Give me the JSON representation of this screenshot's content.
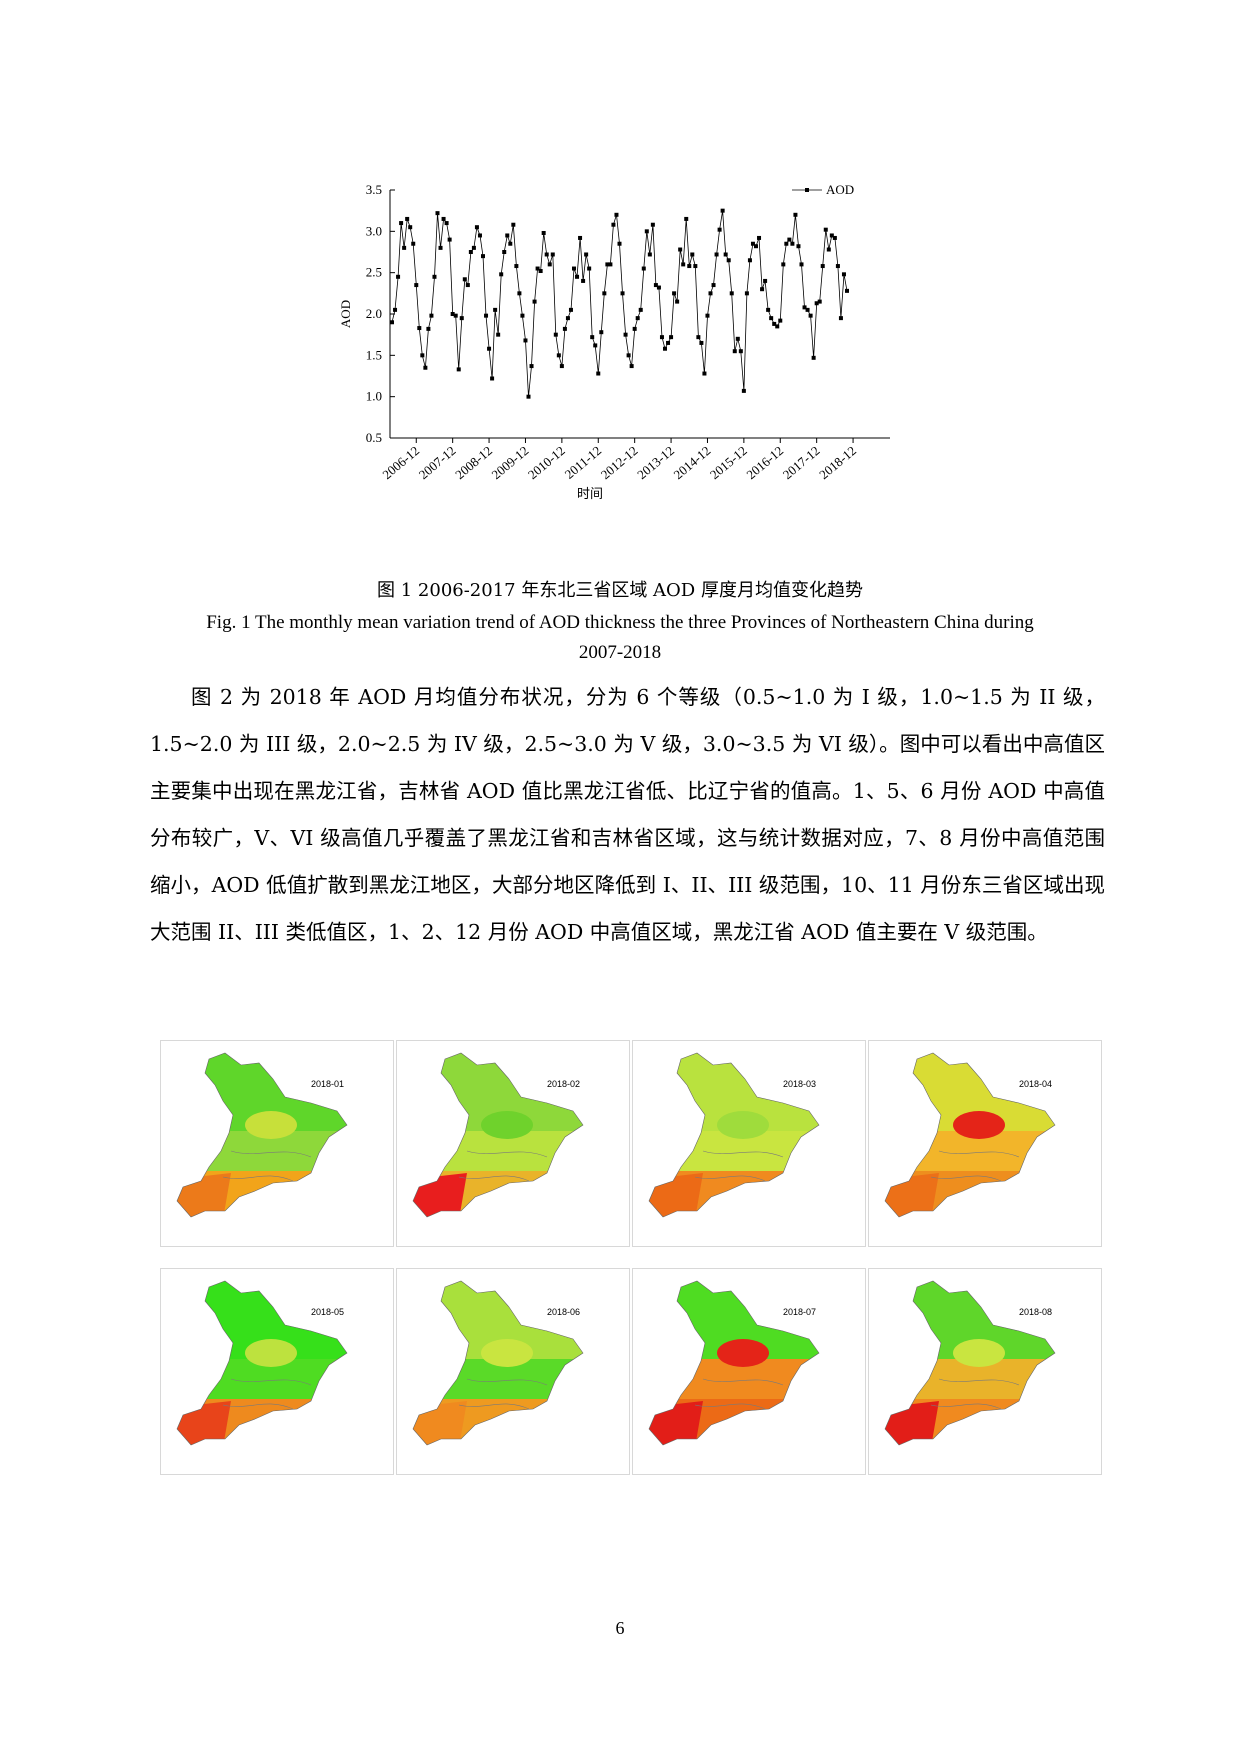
{
  "chart_data": {
    "type": "line",
    "ylabel": "AOD",
    "xlabel": "时间",
    "ylim": [
      0.5,
      3.5
    ],
    "yticks": [
      "0.5",
      "1.0",
      "1.5",
      "2.0",
      "2.5",
      "3.0",
      "3.5"
    ],
    "xticks": [
      "2006-12",
      "2007-12",
      "2008-12",
      "2009-12",
      "2010-12",
      "2011-12",
      "2012-12",
      "2013-12",
      "2014-12",
      "2015-12",
      "2016-12",
      "2017-12",
      "2018-12"
    ],
    "legend": {
      "label": "AOD",
      "position": "top-right"
    },
    "marker": "square",
    "series": [
      {
        "name": "AOD",
        "values": [
          1.9,
          2.05,
          2.45,
          3.1,
          2.8,
          3.15,
          3.05,
          2.85,
          2.35,
          1.83,
          1.5,
          1.35,
          1.82,
          1.98,
          2.45,
          3.22,
          2.8,
          3.15,
          3.1,
          2.9,
          2.0,
          1.98,
          1.33,
          1.95,
          2.42,
          2.35,
          2.75,
          2.8,
          3.05,
          2.95,
          2.7,
          1.98,
          1.58,
          1.22,
          2.05,
          1.75,
          2.48,
          2.75,
          2.95,
          2.85,
          3.08,
          2.58,
          2.25,
          1.98,
          1.68,
          1.0,
          1.37,
          2.15,
          2.55,
          2.52,
          2.98,
          2.72,
          2.6,
          2.72,
          1.75,
          1.5,
          1.37,
          1.82,
          1.95,
          2.05,
          2.55,
          2.45,
          2.92,
          2.4,
          2.72,
          2.55,
          1.72,
          1.62,
          1.28,
          1.78,
          2.25,
          2.6,
          2.6,
          3.08,
          3.2,
          2.85,
          2.25,
          1.75,
          1.5,
          1.37,
          1.82,
          1.95,
          2.05,
          2.55,
          3.0,
          2.72,
          3.08,
          2.35,
          2.32,
          1.72,
          1.58,
          1.65,
          1.72,
          2.25,
          2.15,
          2.78,
          2.6,
          3.15,
          2.58,
          2.72,
          2.58,
          1.72,
          1.65,
          1.28,
          1.98,
          2.25,
          2.35,
          2.72,
          3.02,
          3.25,
          2.72,
          2.65,
          2.25,
          1.55,
          1.7,
          1.55,
          1.07,
          2.25,
          2.65,
          2.85,
          2.82,
          2.92,
          2.3,
          2.4,
          2.05,
          1.95,
          1.88,
          1.85,
          1.92,
          2.6,
          2.85,
          2.9,
          2.85,
          3.2,
          2.82,
          2.6,
          2.08,
          2.05,
          1.98,
          1.47,
          2.13,
          2.15,
          2.58,
          3.02,
          2.78,
          2.95,
          2.92,
          2.58,
          1.95,
          2.48,
          2.28
        ]
      }
    ]
  },
  "captions": {
    "zh": "图 1 2006-2017 年东北三省区域 AOD 厚度月均值变化趋势",
    "en_line1": "Fig. 1 The monthly mean variation trend of AOD thickness the three Provinces of Northeastern China during",
    "en_line2": "2007-2018"
  },
  "body_paragraph": "图 2 为 2018 年 AOD 月均值分布状况，分为 6 个等级（0.5~1.0 为 I 级，1.0~1.5 为 II 级，1.5~2.0 为 III 级，2.0~2.5 为 IV 级，2.5~3.0 为 V 级，3.0~3.5 为 VI 级）。图中可以看出中高值区主要集中出现在黑龙江省，吉林省 AOD 值比黑龙江省低、比辽宁省的值高。1、5、6 月份 AOD 中高值分布较广，V、VI 级高值几乎覆盖了黑龙江省和吉林省区域，这与统计数据对应，7、8 月份中高值范围缩小，AOD 低值扩散到黑龙江地区，大部分地区降低到 I、II、III 级范围，10、11 月份东三省区域出现大范围 II、III 类低值区，1、2、12 月份 AOD 中高值区域，黑龙江省 AOD 值主要在 V 级范围。",
  "maps": [
    {
      "label": "2018-01",
      "north": "#5fd62a",
      "middle": "#8ed83a",
      "south": "#f2a41a",
      "southwest": "#ec7a1a",
      "accent": "#c7e03a"
    },
    {
      "label": "2018-02",
      "north": "#8ed83a",
      "middle": "#b9e23e",
      "south": "#e9b32a",
      "southwest": "#e81e1e",
      "accent": "#6fd22c"
    },
    {
      "label": "2018-03",
      "north": "#b9e23e",
      "middle": "#c9e540",
      "south": "#f08a1f",
      "southwest": "#ec6a16",
      "accent": "#9fdc3c"
    },
    {
      "label": "2018-04",
      "north": "#d9dc34",
      "middle": "#f2b52a",
      "south": "#ee8e1e",
      "southwest": "#ec7018",
      "accent": "#e42418"
    },
    {
      "label": "2018-05",
      "north": "#36e01a",
      "middle": "#4fdc22",
      "south": "#ee8a1e",
      "southwest": "#e8441a",
      "accent": "#bde23e"
    },
    {
      "label": "2018-06",
      "north": "#a9e03c",
      "middle": "#5ada28",
      "south": "#ee9a20",
      "southwest": "#f08a1f",
      "accent": "#c9e540"
    },
    {
      "label": "2018-07",
      "north": "#4fdc22",
      "middle": "#f08a1f",
      "south": "#ec6a16",
      "southwest": "#e21e18",
      "accent": "#e42418"
    },
    {
      "label": "2018-08",
      "north": "#5fd62a",
      "middle": "#e9b32a",
      "south": "#f08a1f",
      "southwest": "#e21e18",
      "accent": "#c9e540"
    }
  ],
  "page_number": "6"
}
